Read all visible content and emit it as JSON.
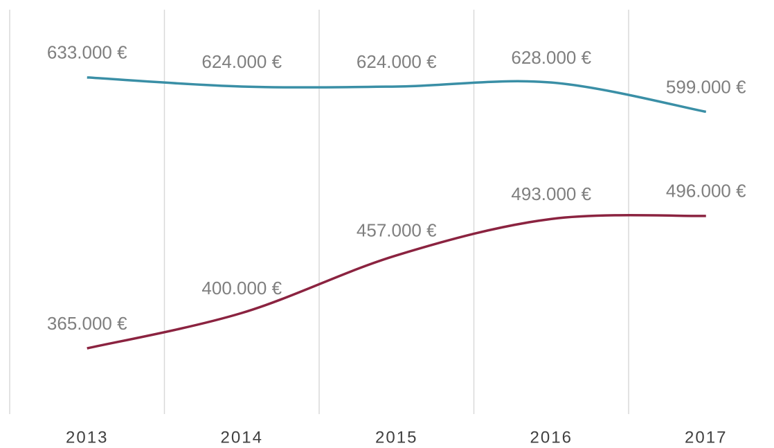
{
  "chart_data": {
    "type": "line",
    "categories": [
      "2013",
      "2014",
      "2015",
      "2016",
      "2017"
    ],
    "series": [
      {
        "color": "#3a8fa6",
        "values": [
          633000,
          624000,
          624000,
          628000,
          599000
        ],
        "value_labels": [
          "633.000 €",
          "624.000 €",
          "624.000 €",
          "628.000 €",
          "599.000 €"
        ]
      },
      {
        "color": "#8b2340",
        "values": [
          365000,
          400000,
          457000,
          493000,
          496000
        ],
        "value_labels": [
          "365.000 €",
          "400.000 €",
          "457.000 €",
          "493.000 €",
          "496.000 €"
        ]
      }
    ],
    "ylim": [
      300000,
      700000
    ],
    "grid": true
  }
}
